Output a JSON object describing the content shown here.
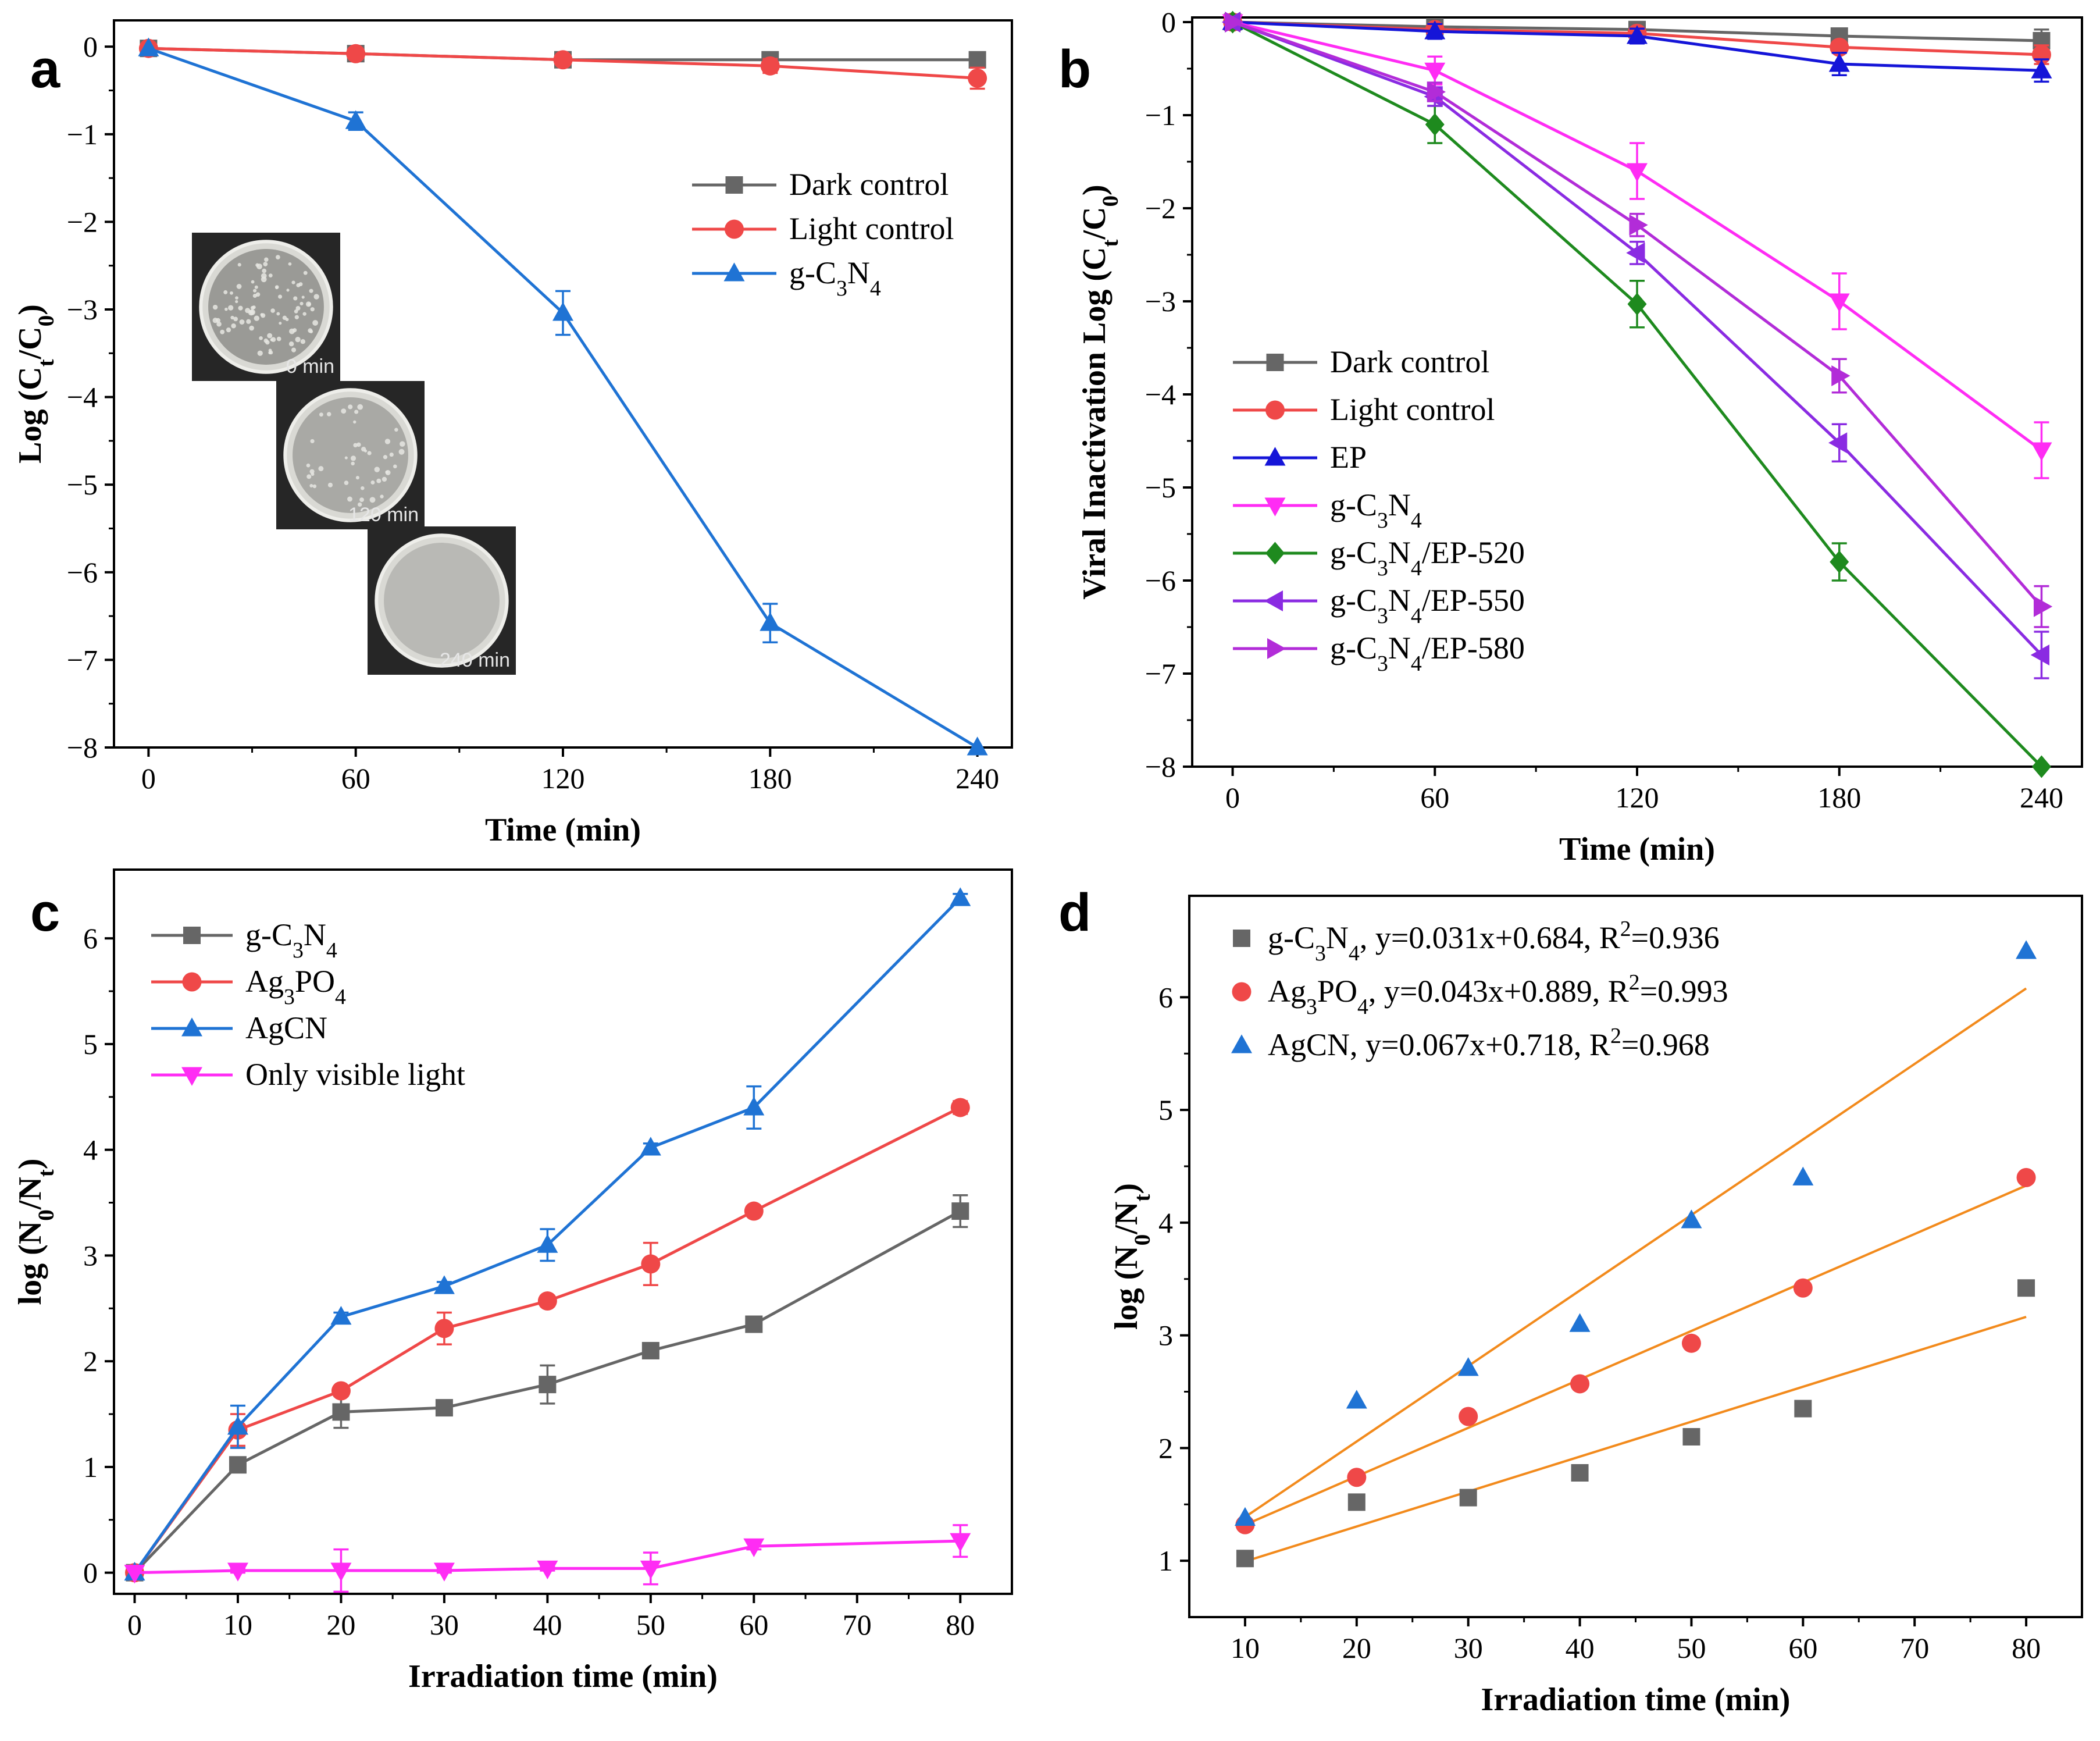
{
  "chart_data": [
    {
      "id": "a",
      "panel_label": "a",
      "type": "line",
      "xlabel": "Time (min)",
      "ylabel": "Log (C_t/C_0)",
      "xlim": [
        -10,
        250
      ],
      "ylim": [
        -8,
        0.3
      ],
      "xticks": [
        0,
        60,
        120,
        180,
        240
      ],
      "yticks": [
        0,
        -1,
        -2,
        -3,
        -4,
        -5,
        -6,
        -7,
        -8
      ],
      "legend_position": "top-right",
      "x": [
        0,
        60,
        120,
        180,
        240
      ],
      "series": [
        {
          "name": "Dark control",
          "label_parts": [
            [
              "Dark control",
              ""
            ]
          ],
          "color": "#666666",
          "marker": "square",
          "values": [
            -0.02,
            -0.08,
            -0.15,
            -0.15,
            -0.15
          ],
          "errors": [
            0,
            0.05,
            0.05,
            0.05,
            0.05
          ]
        },
        {
          "name": "Light control",
          "label_parts": [
            [
              "Light control",
              ""
            ]
          ],
          "color": "#ef4848",
          "marker": "circle",
          "values": [
            -0.02,
            -0.08,
            -0.15,
            -0.22,
            -0.36
          ],
          "errors": [
            0,
            0.06,
            0.06,
            0.08,
            0.12
          ]
        },
        {
          "name": "g-C3N4",
          "label_parts": [
            [
              "g-C",
              ""
            ],
            [
              "3",
              "sub"
            ],
            [
              "N",
              ""
            ],
            [
              "4",
              "sub"
            ]
          ],
          "color": "#1f73d4",
          "marker": "triangle-up",
          "values": [
            -0.02,
            -0.85,
            -3.04,
            -6.58,
            -8.0
          ],
          "errors": [
            0,
            0.1,
            0.25,
            0.22,
            0
          ]
        }
      ],
      "inset_photos": [
        {
          "caption": "0 min",
          "tone": "spotted"
        },
        {
          "caption": "120 min",
          "tone": "speckled"
        },
        {
          "caption": "240 min",
          "tone": "clear"
        }
      ]
    },
    {
      "id": "b",
      "panel_label": "b",
      "type": "line",
      "xlabel": "Time (min)",
      "ylabel": "Viral Inactivation Log (C_t/C_0)",
      "xlim": [
        -12,
        252
      ],
      "ylim": [
        -8,
        0.05
      ],
      "xticks": [
        0,
        60,
        120,
        180,
        240
      ],
      "yticks": [
        0,
        -1,
        -2,
        -3,
        -4,
        -5,
        -6,
        -7,
        -8
      ],
      "legend_position": "bottom-left",
      "x": [
        0,
        60,
        120,
        180,
        240
      ],
      "series": [
        {
          "name": "Dark control",
          "label_parts": [
            [
              "Dark control",
              ""
            ]
          ],
          "color": "#666666",
          "marker": "square",
          "values": [
            0,
            -0.05,
            -0.08,
            -0.15,
            -0.2
          ],
          "errors": [
            0,
            0.03,
            0.05,
            0.05,
            0.12
          ]
        },
        {
          "name": "Light control",
          "label_parts": [
            [
              "Light control",
              ""
            ]
          ],
          "color": "#ef4848",
          "marker": "circle",
          "values": [
            0,
            -0.08,
            -0.12,
            -0.27,
            -0.35
          ],
          "errors": [
            0,
            0.03,
            0.05,
            0.06,
            0.1
          ]
        },
        {
          "name": "EP",
          "label_parts": [
            [
              "EP",
              ""
            ]
          ],
          "color": "#1515d8",
          "marker": "triangle-up",
          "values": [
            0,
            -0.1,
            -0.15,
            -0.45,
            -0.52
          ],
          "errors": [
            0,
            0.08,
            0.08,
            0.12,
            0.12
          ]
        },
        {
          "name": "g-C3N4",
          "label_parts": [
            [
              "g-C",
              ""
            ],
            [
              "3",
              "sub"
            ],
            [
              "N",
              ""
            ],
            [
              "4",
              "sub"
            ]
          ],
          "color": "#ff2cf4",
          "marker": "triangle-down",
          "values": [
            0,
            -0.52,
            -1.6,
            -3.0,
            -4.6
          ],
          "errors": [
            0,
            0.15,
            0.3,
            0.3,
            0.3
          ]
        },
        {
          "name": "g-C3N4/EP-520",
          "label_parts": [
            [
              "g-C",
              ""
            ],
            [
              "3",
              "sub"
            ],
            [
              "N",
              ""
            ],
            [
              "4",
              "sub"
            ],
            [
              "/EP-520",
              ""
            ]
          ],
          "color": "#1e8a1e",
          "marker": "diamond",
          "values": [
            0,
            -1.1,
            -3.03,
            -5.8,
            -8.0
          ],
          "errors": [
            0,
            0.2,
            0.25,
            0.2,
            0
          ]
        },
        {
          "name": "g-C3N4/EP-550",
          "label_parts": [
            [
              "g-C",
              ""
            ],
            [
              "3",
              "sub"
            ],
            [
              "N",
              ""
            ],
            [
              "4",
              "sub"
            ],
            [
              "/EP-550",
              ""
            ]
          ],
          "color": "#8a2be2",
          "marker": "triangle-left",
          "values": [
            0,
            -0.8,
            -2.48,
            -4.52,
            -6.8
          ],
          "errors": [
            0,
            0.1,
            0.12,
            0.2,
            0.25
          ]
        },
        {
          "name": "g-C3N4/EP-580",
          "label_parts": [
            [
              "g-C",
              ""
            ],
            [
              "3",
              "sub"
            ],
            [
              "N",
              ""
            ],
            [
              "4",
              "sub"
            ],
            [
              "/EP-580",
              ""
            ]
          ],
          "color": "#b22cd8",
          "marker": "triangle-right",
          "values": [
            0,
            -0.75,
            -2.18,
            -3.8,
            -6.28
          ],
          "errors": [
            0,
            0.1,
            0.12,
            0.18,
            0.22
          ]
        }
      ]
    },
    {
      "id": "c",
      "panel_label": "c",
      "type": "line",
      "xlabel": "Irradiation time (min)",
      "ylabel": "log (N_0/N_t)",
      "xlim": [
        -2,
        85
      ],
      "ylim": [
        -0.2,
        6.65
      ],
      "xticks": [
        0,
        10,
        20,
        30,
        40,
        50,
        60,
        70,
        80
      ],
      "yticks": [
        0,
        1,
        2,
        3,
        4,
        5,
        6
      ],
      "legend_position": "top-left",
      "x": [
        0,
        10,
        20,
        30,
        40,
        50,
        60,
        80
      ],
      "series": [
        {
          "name": "g-C3N4",
          "label_parts": [
            [
              "g-C",
              ""
            ],
            [
              "3",
              "sub"
            ],
            [
              "N",
              ""
            ],
            [
              "4",
              "sub"
            ]
          ],
          "color": "#666666",
          "marker": "square",
          "values": [
            0,
            1.02,
            1.52,
            1.56,
            1.78,
            2.1,
            2.35,
            3.42
          ],
          "errors": [
            0,
            0.05,
            0.15,
            0.03,
            0.18,
            0.04,
            0.04,
            0.15
          ]
        },
        {
          "name": "Ag3PO4",
          "label_parts": [
            [
              "Ag",
              ""
            ],
            [
              "3",
              "sub"
            ],
            [
              "PO",
              ""
            ],
            [
              "4",
              "sub"
            ]
          ],
          "color": "#ef4848",
          "marker": "circle",
          "values": [
            0,
            1.35,
            1.72,
            2.31,
            2.57,
            2.92,
            3.42,
            4.4
          ],
          "errors": [
            0,
            0.15,
            0.04,
            0.15,
            0.05,
            0.2,
            0.04,
            0.06
          ]
        },
        {
          "name": "AgCN",
          "label_parts": [
            [
              "AgCN",
              ""
            ]
          ],
          "color": "#1f73d4",
          "marker": "triangle-up",
          "values": [
            0,
            1.38,
            2.42,
            2.71,
            3.1,
            4.02,
            4.4,
            6.38
          ],
          "errors": [
            0,
            0.2,
            0.04,
            0.04,
            0.15,
            0.04,
            0.2,
            0.04
          ]
        },
        {
          "name": "Only visible light",
          "label_parts": [
            [
              "Only visible light",
              ""
            ]
          ],
          "color": "#ff2cf4",
          "marker": "triangle-down",
          "values": [
            0,
            0.02,
            0.02,
            0.02,
            0.04,
            0.04,
            0.25,
            0.3
          ],
          "errors": [
            0,
            0.02,
            0.2,
            0.02,
            0.02,
            0.15,
            0.03,
            0.15
          ]
        }
      ]
    },
    {
      "id": "d",
      "panel_label": "d",
      "type": "scatter",
      "xlabel": "Irradiation time (min)",
      "ylabel": "log (N_0/N_t)",
      "xlim": [
        5,
        85
      ],
      "ylim": [
        0.5,
        6.9
      ],
      "xticks": [
        10,
        20,
        30,
        40,
        50,
        60,
        70,
        80
      ],
      "yticks": [
        1,
        2,
        3,
        4,
        5,
        6
      ],
      "legend_position": "top-left",
      "fit_color": "#f28a1c",
      "x": [
        10,
        20,
        30,
        40,
        50,
        60,
        80
      ],
      "series": [
        {
          "name": "g-C3N4",
          "label_parts": [
            [
              "g-C",
              ""
            ],
            [
              "3",
              "sub"
            ],
            [
              "N",
              ""
            ],
            [
              "4",
              "sub"
            ],
            [
              ",  y=0.031x+0.684, R",
              ""
            ],
            [
              "2",
              "sup"
            ],
            [
              "=0.936",
              ""
            ]
          ],
          "color": "#666666",
          "marker": "square",
          "values": [
            1.02,
            1.52,
            1.56,
            1.78,
            2.1,
            2.35,
            3.42
          ],
          "fit": {
            "slope": 0.031,
            "intercept": 0.684
          }
        },
        {
          "name": "Ag3PO4",
          "label_parts": [
            [
              "Ag",
              ""
            ],
            [
              "3",
              "sub"
            ],
            [
              "PO",
              ""
            ],
            [
              "4",
              "sub"
            ],
            [
              ", y=0.043x+0.889, R",
              ""
            ],
            [
              "2",
              "sup"
            ],
            [
              "=0.993",
              ""
            ]
          ],
          "color": "#ef4848",
          "marker": "circle",
          "values": [
            1.32,
            1.74,
            2.28,
            2.57,
            2.93,
            3.42,
            4.4
          ],
          "fit": {
            "slope": 0.043,
            "intercept": 0.889
          }
        },
        {
          "name": "AgCN",
          "label_parts": [
            [
              "AgCN,   y=0.067x+0.718, R",
              ""
            ],
            [
              "2",
              "sup"
            ],
            [
              "=0.968",
              ""
            ]
          ],
          "color": "#1f73d4",
          "marker": "triangle-up",
          "values": [
            1.38,
            2.42,
            2.71,
            3.1,
            4.02,
            4.4,
            6.41
          ],
          "fit": {
            "slope": 0.067,
            "intercept": 0.718
          }
        }
      ]
    }
  ]
}
